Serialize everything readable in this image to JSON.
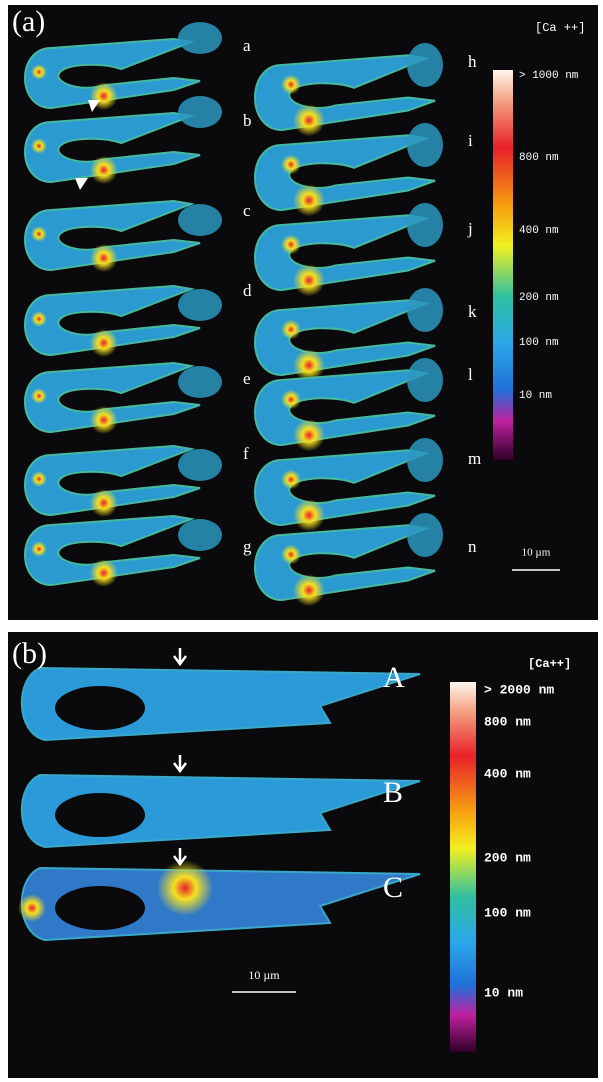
{
  "panel_a": {
    "label": "(a)",
    "colorbar_title": "[Ca ++]",
    "colorbar_labels": [
      "> 1000 nm",
      "800 nm",
      "400 nm",
      "200 nm",
      "100 nm",
      "10 nm"
    ],
    "frame_labels": [
      "a",
      "b",
      "c",
      "d",
      "e",
      "f",
      "g",
      "h",
      "i",
      "j",
      "k",
      "l",
      "m",
      "n"
    ],
    "scale_bar": "10 µm"
  },
  "panel_b": {
    "label": "(b)",
    "colorbar_title": "[Ca++]",
    "colorbar_labels": [
      "> 2000 nm",
      "800 nm",
      "400 nm",
      "200 nm",
      "100 nm",
      "10 nm"
    ],
    "frame_labels": [
      "A",
      "B",
      "C"
    ],
    "scale_bar": "10 µm"
  }
}
